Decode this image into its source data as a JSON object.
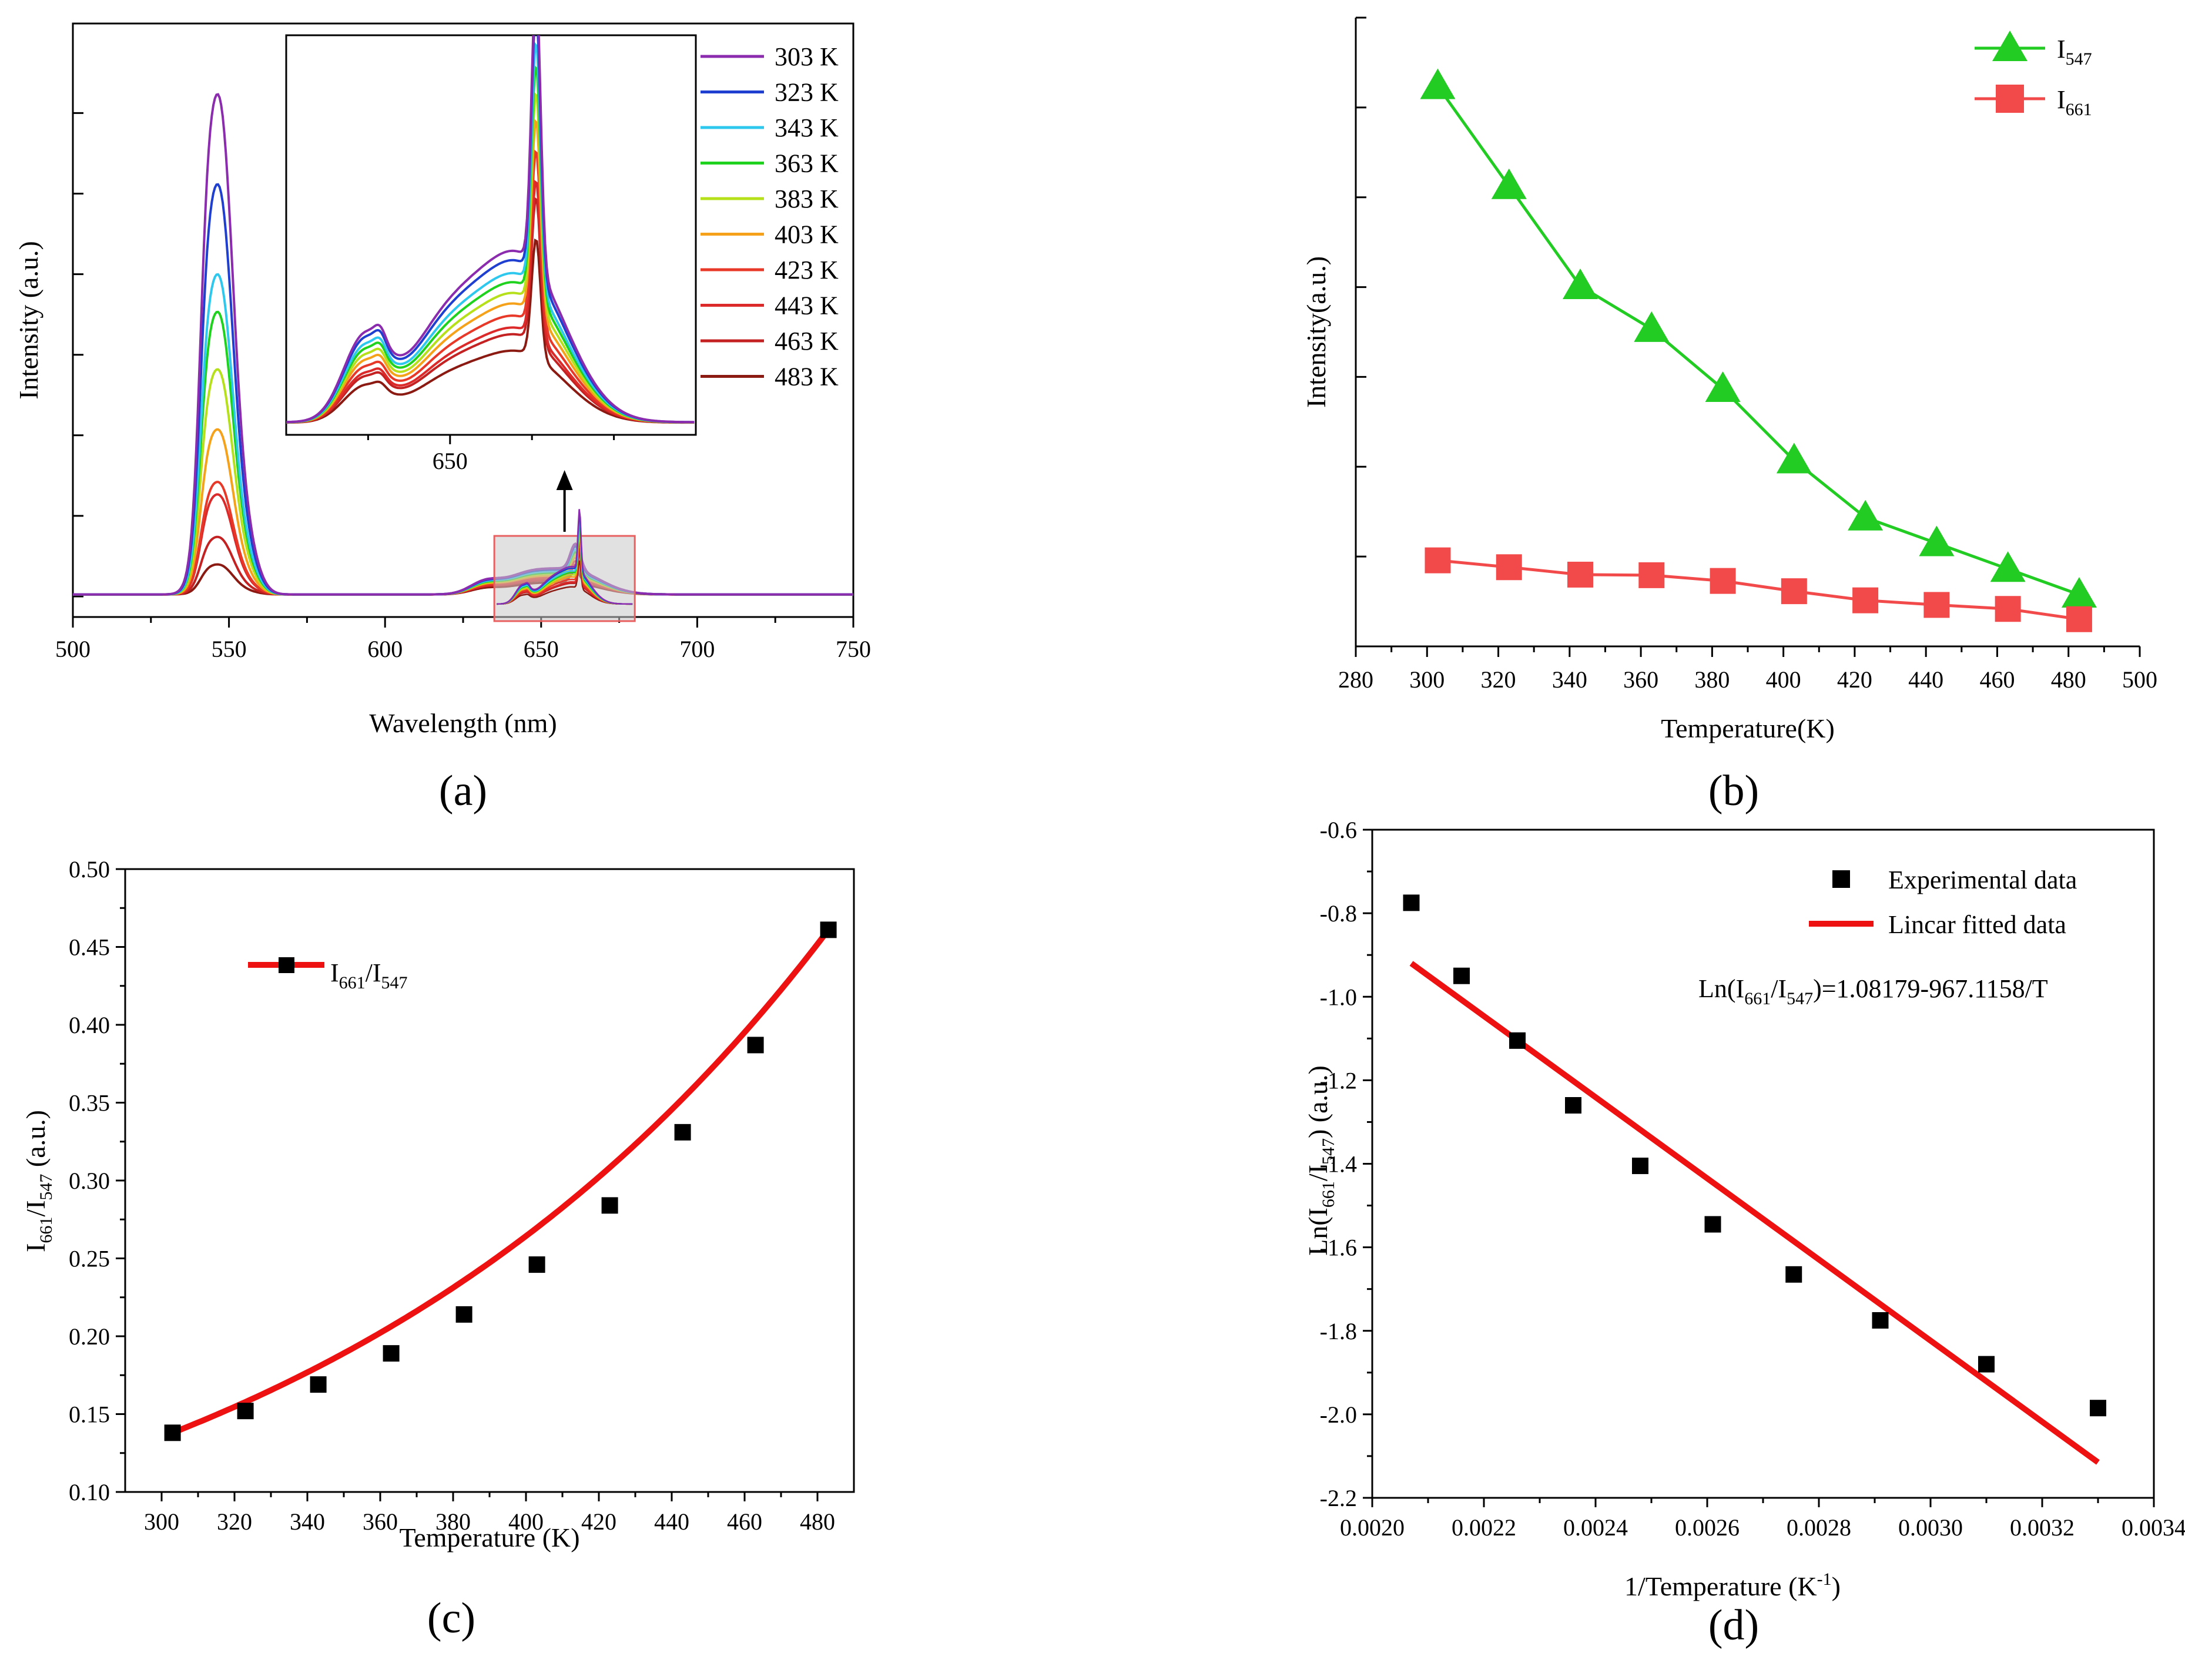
{
  "chart_data": [
    {
      "panel": "a",
      "type": "line",
      "panel_label": "(a)",
      "xlabel": "Wavelength (nm)",
      "ylabel": "Intensity (a.u.)",
      "xlim": [
        500,
        750
      ],
      "ylim": [
        0,
        1.05
      ],
      "xticks": [
        "500",
        "550",
        "600",
        "650",
        "700",
        "750"
      ],
      "temperatures": [
        "303 K",
        "323 K",
        "343 K",
        "363 K",
        "383 K",
        "403 K",
        "423 K",
        "443 K",
        "463 K",
        "483 K"
      ],
      "colors": [
        "#8B2BAE",
        "#1F3FD0",
        "#2EC8EE",
        "#1ED21E",
        "#B5E01A",
        "#F5A21A",
        "#E83828",
        "#DC2A2A",
        "#C42222",
        "#8B1A12"
      ],
      "peak547_intensity": [
        1.0,
        0.82,
        0.64,
        0.565,
        0.45,
        0.33,
        0.225,
        0.2,
        0.115,
        0.06
      ],
      "peak661_intensity": [
        0.105,
        0.1,
        0.093,
        0.088,
        0.082,
        0.076,
        0.069,
        0.062,
        0.058,
        0.048
      ],
      "inset": {
        "xlim": [
          630,
          680
        ],
        "xticks": [
          "650"
        ],
        "zoom_box_x": [
          635,
          680
        ],
        "description_arrow": "up"
      }
    },
    {
      "panel": "b",
      "type": "line",
      "panel_label": "(b)",
      "xlabel": "Temperature(K)",
      "ylabel": "Intensity(a.u.)",
      "xlim": [
        280,
        500
      ],
      "ylim": [
        0,
        1.08
      ],
      "xticks": [
        "280",
        "300",
        "320",
        "340",
        "360",
        "380",
        "400",
        "420",
        "440",
        "460",
        "480",
        "500"
      ],
      "x": [
        303,
        323,
        343,
        363,
        383,
        403,
        423,
        443,
        463,
        483
      ],
      "series": [
        {
          "name": "I",
          "sub": "547",
          "color": "#22CC22",
          "marker": "triangle",
          "values": [
            0.96,
            0.785,
            0.61,
            0.535,
            0.43,
            0.305,
            0.205,
            0.16,
            0.115,
            0.07
          ]
        },
        {
          "name": "I",
          "sub": "661",
          "color": "#F24A4A",
          "marker": "square",
          "values": [
            0.13,
            0.118,
            0.105,
            0.104,
            0.094,
            0.076,
            0.06,
            0.052,
            0.045,
            0.027
          ]
        }
      ]
    },
    {
      "panel": "c",
      "type": "line",
      "panel_label": "(c)",
      "xlabel": "Temperature (K)",
      "ylabel_main": "I",
      "ylabel_sub1": "661",
      "ylabel_mid": "/I",
      "ylabel_sub2": "547",
      "ylabel_tail": " (a.u.)",
      "xlim": [
        290,
        490
      ],
      "ylim": [
        0.1,
        0.5
      ],
      "xticks": [
        "300",
        "320",
        "340",
        "360",
        "380",
        "400",
        "420",
        "440",
        "460",
        "480"
      ],
      "yticks": [
        "0.10",
        "0.15",
        "0.20",
        "0.25",
        "0.30",
        "0.35",
        "0.40",
        "0.45",
        "0.50"
      ],
      "legend": {
        "main": "I",
        "sub1": "661",
        "mid": "/I",
        "sub2": "547"
      },
      "x": [
        303,
        323,
        343,
        363,
        383,
        403,
        423,
        443,
        463,
        483
      ],
      "values": [
        0.138,
        0.152,
        0.169,
        0.189,
        0.214,
        0.246,
        0.284,
        0.331,
        0.387,
        0.461
      ],
      "fit_color": "#EE1111"
    },
    {
      "panel": "d",
      "type": "scatter",
      "panel_label": "(d)",
      "xlabel_main": "1/Temperature (K",
      "xlabel_sup": "-1",
      "xlabel_tail": ")",
      "ylabel_main": "Ln(I",
      "ylabel_sub1": "661",
      "ylabel_mid": "/I",
      "ylabel_sub2": "547",
      "ylabel_tail": ") (a.u.)",
      "xlim": [
        0.002,
        0.0034
      ],
      "ylim": [
        -2.2,
        -0.6
      ],
      "xticks": [
        "0.0020",
        "0.0022",
        "0.0024",
        "0.0026",
        "0.0028",
        "0.0030",
        "0.0032",
        "0.0034"
      ],
      "yticks": [
        "-0.6",
        "-0.8",
        "-1.0",
        "-1.2",
        "-1.4",
        "-1.6",
        "-1.8",
        "-2.0",
        "-2.2"
      ],
      "legend_points": "Experimental data",
      "legend_fit": "Lincar fitted data",
      "equation_pre": "Ln(I",
      "equation_sub1": "661",
      "equation_mid": "/I",
      "equation_sub2": "547",
      "equation_post": ")=1.08179-967.1158/T",
      "x": [
        0.00207,
        0.00216,
        0.00226,
        0.00236,
        0.00248,
        0.00261,
        0.002755,
        0.00291,
        0.0031,
        0.0033
      ],
      "y": [
        -0.775,
        -0.95,
        -1.105,
        -1.26,
        -1.405,
        -1.545,
        -1.665,
        -1.775,
        -1.88,
        -1.985
      ],
      "fit": {
        "intercept": 1.08179,
        "slope": -967.1158,
        "x_range": [
          0.00207,
          0.0033
        ]
      },
      "fit_color": "#EE1111"
    }
  ]
}
